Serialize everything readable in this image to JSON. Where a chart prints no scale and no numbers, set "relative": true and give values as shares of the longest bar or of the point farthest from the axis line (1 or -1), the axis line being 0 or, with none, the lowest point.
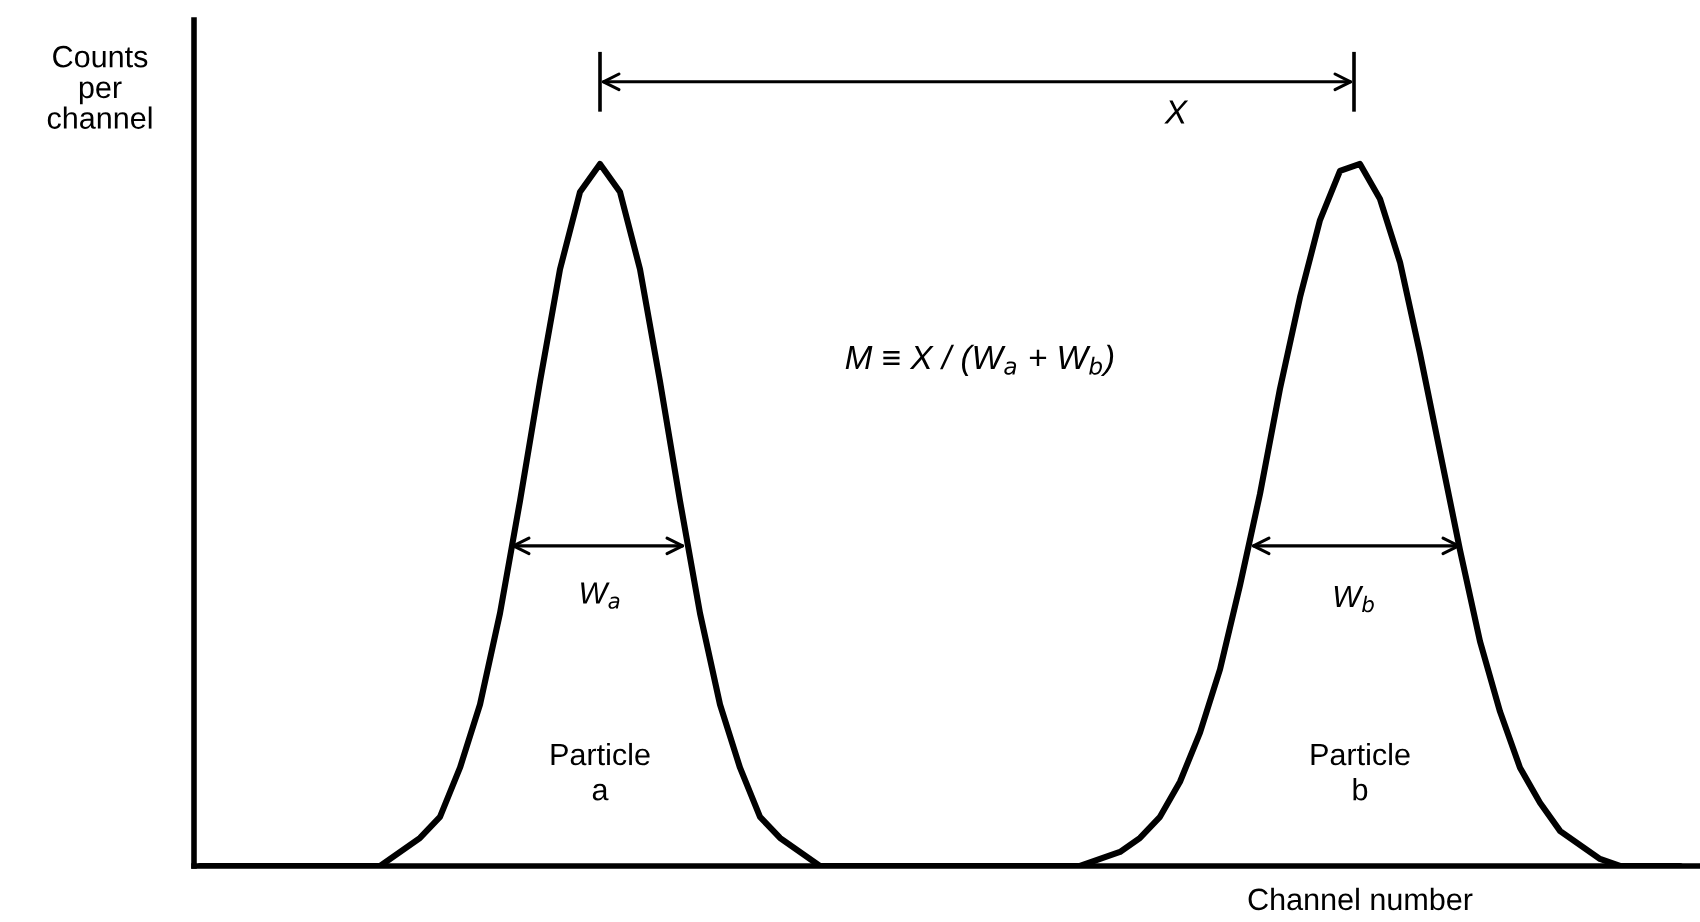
{
  "chart_data": {
    "type": "line",
    "relative": true,
    "xlabel": "Channel number",
    "ylabel": "Counts\nper\nchannel",
    "categories": [
      null,
      null,
      null,
      null,
      null,
      null,
      null,
      null,
      null,
      null,
      null,
      null,
      null,
      null,
      null,
      null,
      null,
      null,
      null,
      null,
      null,
      null,
      null,
      null,
      null,
      null,
      null,
      null,
      null,
      null,
      null,
      null,
      null,
      null,
      null,
      null,
      null,
      null,
      null,
      null,
      null,
      null,
      null,
      null,
      null,
      null,
      null,
      null,
      null,
      null,
      null,
      null,
      null,
      null,
      null,
      null,
      null,
      null,
      null,
      null,
      null,
      null,
      null,
      null,
      null,
      null,
      null,
      null,
      null,
      null,
      null,
      null,
      null,
      null,
      null
    ],
    "series": [
      {
        "color": "#000000",
        "values": [
          0,
          0,
          0,
          0,
          0,
          0,
          0,
          0,
          0,
          0,
          0.02,
          0.04,
          0.07,
          0.14,
          0.23,
          0.36,
          0.52,
          0.69,
          0.85,
          0.96,
          1,
          0.96,
          0.85,
          0.69,
          0.52,
          0.36,
          0.23,
          0.14,
          0.07,
          0.04,
          0.02,
          0,
          0,
          0,
          0,
          0,
          0,
          0,
          0,
          0,
          0,
          0,
          0,
          0,
          0,
          0.01,
          0.02,
          0.04,
          0.07,
          0.12,
          0.19,
          0.28,
          0.4,
          0.53,
          0.68,
          0.81,
          0.92,
          0.99,
          1,
          0.95,
          0.86,
          0.73,
          0.59,
          0.45,
          0.32,
          0.22,
          0.14,
          0.09,
          0.05,
          0.03,
          0.01,
          0,
          0,
          0,
          0
        ]
      }
    ],
    "annotations": [
      "X",
      "M ≡ X / (W$_{a}$ + W$_{b}$)",
      "W$_{a}$",
      "W$_{b}$",
      "Particle\na",
      "Particle\nb"
    ],
    "grid": false,
    "legend": false
  }
}
